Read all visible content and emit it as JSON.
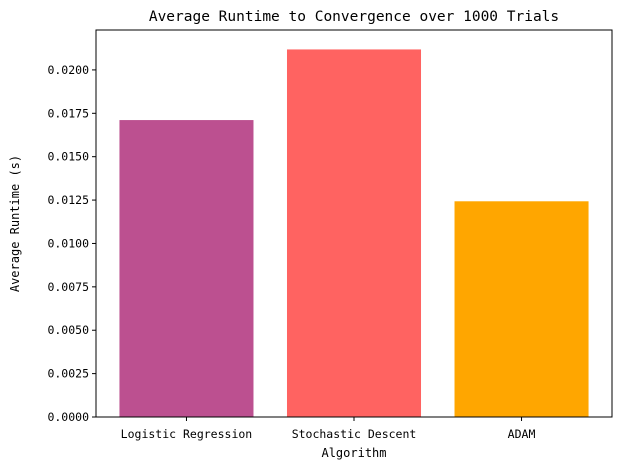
{
  "chart_data": {
    "type": "bar",
    "title": "Average Runtime to Convergence over 1000 Trials",
    "xlabel": "Algorithm",
    "ylabel": "Average Runtime (s)",
    "categories": [
      "Logistic Regression",
      "Stochastic Descent",
      "ADAM"
    ],
    "values": [
      0.01711,
      0.02118,
      0.01243
    ],
    "colors": [
      "#bc5090",
      "#ff6361",
      "#ffa600"
    ],
    "ylim": [
      0,
      0.0223
    ],
    "yticks": [
      0.0,
      0.0025,
      0.005,
      0.0075,
      0.01,
      0.0125,
      0.015,
      0.0175,
      0.02
    ],
    "ytick_labels": [
      "0.0000",
      "0.0025",
      "0.0050",
      "0.0075",
      "0.0100",
      "0.0125",
      "0.0150",
      "0.0175",
      "0.0200"
    ],
    "grid": false,
    "legend": "none"
  }
}
